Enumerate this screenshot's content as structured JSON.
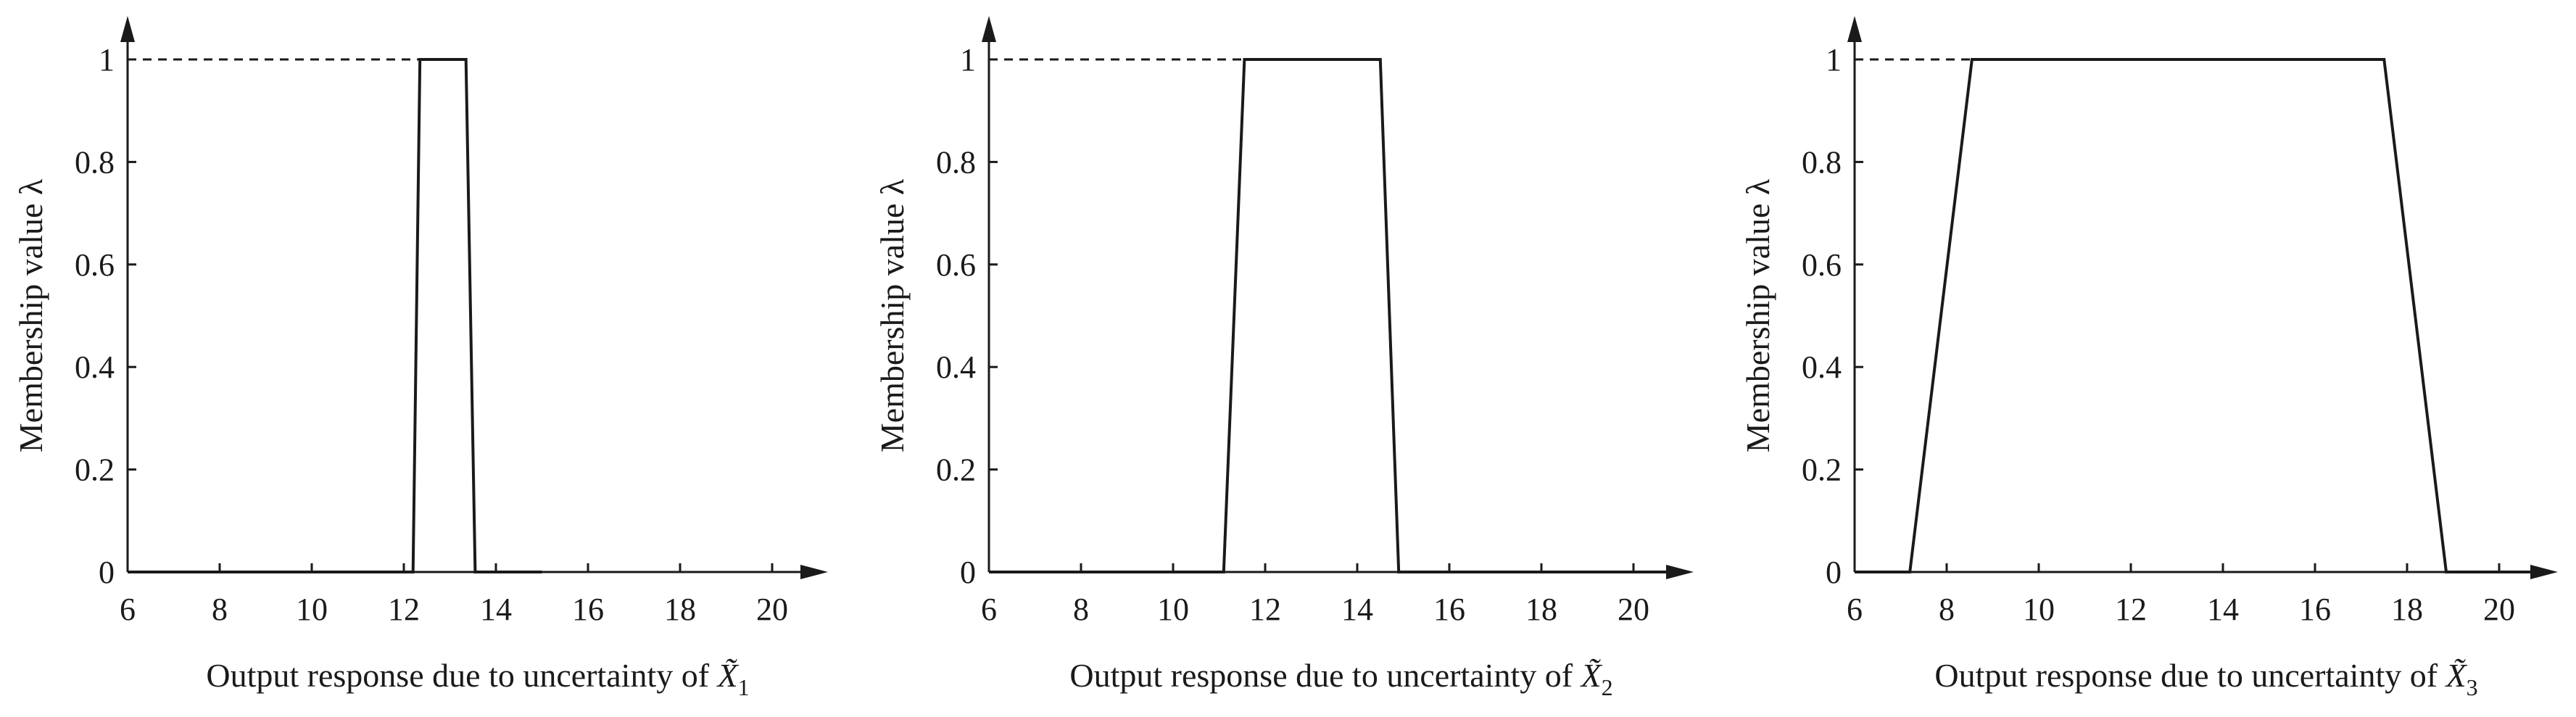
{
  "chart_data": [
    {
      "type": "line",
      "ylabel": "Membership value λ",
      "xlabel_prefix": "Output response due to uncertainty of ",
      "xlabel_var": "X",
      "xlabel_sub": "1",
      "xlim": [
        6,
        21
      ],
      "ylim": [
        0,
        1
      ],
      "x_ticks": [
        "6",
        "8",
        "10",
        "12",
        "14",
        "16",
        "18",
        "20"
      ],
      "y_ticks": [
        "0",
        "0.2",
        "0.4",
        "0.6",
        "0.8",
        "1"
      ],
      "series": [
        {
          "x": [
            6,
            11,
            12.2,
            12.35,
            13.35,
            13.55,
            15
          ],
          "y": [
            0,
            0,
            0,
            1,
            1,
            0,
            0
          ]
        }
      ]
    },
    {
      "type": "line",
      "ylabel": "Membership value λ",
      "xlabel_prefix": "Output response due to uncertainty of ",
      "xlabel_var": "X",
      "xlabel_sub": "2",
      "xlim": [
        6,
        21
      ],
      "ylim": [
        0,
        1
      ],
      "x_ticks": [
        "6",
        "8",
        "10",
        "12",
        "14",
        "16",
        "18",
        "20"
      ],
      "y_ticks": [
        "0",
        "0.2",
        "0.4",
        "0.6",
        "0.8",
        "1"
      ],
      "series": [
        {
          "x": [
            6,
            11.1,
            11.55,
            14.5,
            14.9,
            21
          ],
          "y": [
            0,
            0,
            1,
            1,
            0,
            0
          ]
        }
      ]
    },
    {
      "type": "line",
      "ylabel": "Membership value λ",
      "xlabel_prefix": "Output response due to uncertainty of ",
      "xlabel_var": "X",
      "xlabel_sub": "3",
      "xlim": [
        6,
        21
      ],
      "ylim": [
        0,
        1
      ],
      "x_ticks": [
        "6",
        "8",
        "10",
        "12",
        "14",
        "16",
        "18",
        "20"
      ],
      "y_ticks": [
        "0",
        "0.2",
        "0.4",
        "0.6",
        "0.8",
        "1"
      ],
      "series": [
        {
          "x": [
            6,
            7.2,
            8.55,
            17.5,
            18.85,
            21
          ],
          "y": [
            0,
            0,
            1,
            1,
            0,
            0
          ]
        }
      ]
    }
  ]
}
